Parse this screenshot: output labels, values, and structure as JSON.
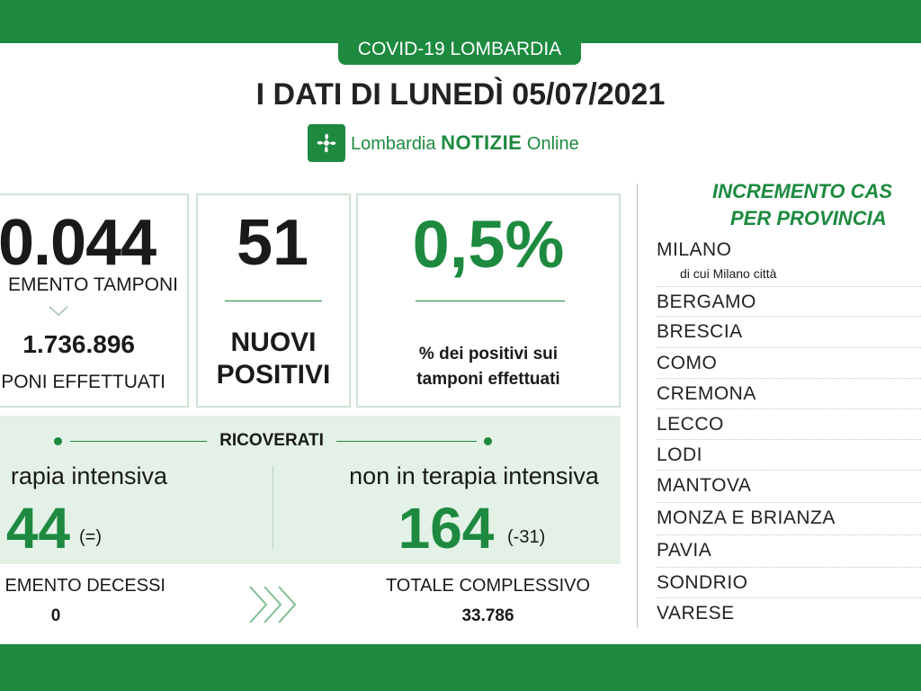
{
  "header": {
    "tag": "COVID-19 LOMBARDIA",
    "title": "I DATI DI LUNEDÌ 05/07/2021",
    "brand_prefix": "Lombardia",
    "brand_main": "NOTIZIE",
    "brand_suffix": "Online",
    "brand_color": "#1d8a3f"
  },
  "tamponi": {
    "value": "0.044",
    "label": "EMENTO TAMPONI",
    "total": "1.736.896",
    "total_label": "PONI EFFETTUATI"
  },
  "nuovi": {
    "value": "51",
    "label_line1": "NUOVI",
    "label_line2": "POSITIVI"
  },
  "percentuale": {
    "value": "0,5%",
    "label_line1": "% dei positivi sui",
    "label_line2": "tamponi effettuati"
  },
  "ricoverati": {
    "heading": "RICOVERATI",
    "intensiva_label": "rapia intensiva",
    "intensiva_value": "44",
    "intensiva_change": "(=)",
    "non_intensiva_label": "non in terapia intensiva",
    "non_intensiva_value": "164",
    "non_intensiva_change": "(-31)"
  },
  "decessi": {
    "label": "EMENTO DECESSI",
    "value": "0"
  },
  "totale": {
    "label": "TOTALE COMPLESSIVO",
    "value": "33.786"
  },
  "province": {
    "title_line1": "INCREMENTO CAS",
    "title_line2": "PER PROVINCIA",
    "milano_sub": "di cui Milano città",
    "items": [
      "MILANO",
      "BERGAMO",
      "BRESCIA",
      "COMO",
      "CREMONA",
      "LECCO",
      "LODI",
      "MANTOVA",
      "MONZA E BRIANZA",
      "PAVIA",
      "SONDRIO",
      "VARESE"
    ]
  }
}
